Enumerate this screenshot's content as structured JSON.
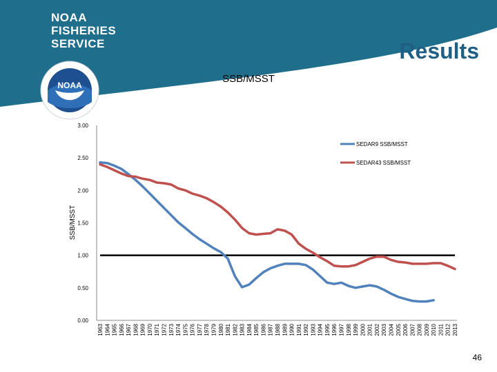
{
  "header": {
    "brand_lines": [
      "NOAA",
      "FISHERIES",
      "SERVICE"
    ],
    "slide_title": "Results",
    "logo_text": "NOAA"
  },
  "colors": {
    "brand_teal": "#1f6e8c",
    "title_blue": "#1f5f86",
    "series1": "#4f81bd",
    "series2": "#c0504d",
    "reference": "#000000"
  },
  "chart_data": {
    "type": "line",
    "title": "SSB/MSST",
    "xlabel": "",
    "ylabel": "SSB/MSST",
    "ylim": [
      0,
      3.0
    ],
    "yticks": [
      "0.00",
      "0.50",
      "1.00",
      "1.50",
      "2.00",
      "2.50",
      "3.00"
    ],
    "x": [
      1963,
      1964,
      1965,
      1966,
      1967,
      1968,
      1969,
      1970,
      1971,
      1972,
      1973,
      1974,
      1975,
      1976,
      1977,
      1978,
      1979,
      1980,
      1981,
      1982,
      1983,
      1984,
      1985,
      1986,
      1987,
      1988,
      1989,
      1990,
      1991,
      1992,
      1993,
      1994,
      1995,
      1996,
      1997,
      1998,
      1999,
      2000,
      2001,
      2002,
      2003,
      2004,
      2005,
      2006,
      2007,
      2008,
      2009,
      2010,
      2011,
      2012,
      2013
    ],
    "series": [
      {
        "name": "SEDAR9 SSB/MSST",
        "values": [
          2.43,
          2.42,
          2.38,
          2.33,
          2.25,
          2.16,
          2.06,
          1.95,
          1.84,
          1.73,
          1.62,
          1.51,
          1.42,
          1.33,
          1.25,
          1.18,
          1.11,
          1.05,
          0.95,
          0.68,
          0.51,
          0.55,
          0.65,
          0.74,
          0.8,
          0.84,
          0.87,
          0.87,
          0.87,
          0.85,
          0.78,
          0.68,
          0.58,
          0.56,
          0.58,
          0.53,
          0.5,
          0.52,
          0.54,
          0.52,
          0.47,
          0.41,
          0.36,
          0.33,
          0.3,
          0.29,
          0.29,
          0.31,
          null,
          null,
          null
        ]
      },
      {
        "name": "SEDAR43 SSB/MSST",
        "values": [
          2.4,
          2.36,
          2.31,
          2.26,
          2.22,
          2.21,
          2.18,
          2.16,
          2.12,
          2.11,
          2.09,
          2.03,
          2.0,
          1.95,
          1.92,
          1.88,
          1.82,
          1.75,
          1.66,
          1.55,
          1.42,
          1.34,
          1.32,
          1.33,
          1.34,
          1.4,
          1.38,
          1.32,
          1.18,
          1.1,
          1.04,
          0.97,
          0.91,
          0.84,
          0.83,
          0.83,
          0.85,
          0.9,
          0.95,
          0.98,
          0.98,
          0.93,
          0.9,
          0.89,
          0.87,
          0.87,
          0.87,
          0.88,
          0.88,
          0.84,
          0.79
        ]
      }
    ],
    "reference_line": 1.0
  },
  "page_number": "46"
}
